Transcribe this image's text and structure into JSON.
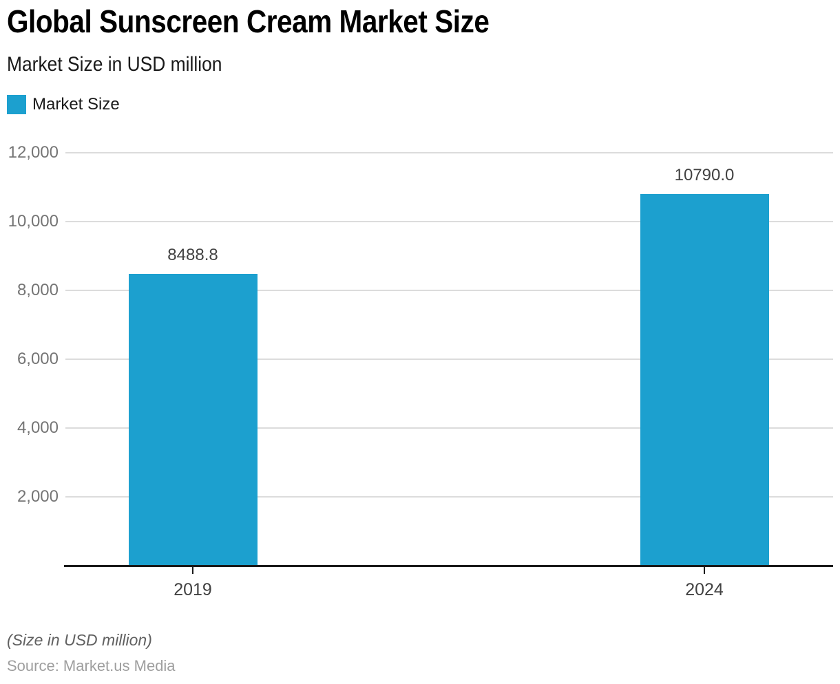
{
  "header": {
    "title": "Global Sunscreen Cream Market Size",
    "subtitle": "Market Size in USD million"
  },
  "legend": {
    "label": "Market Size"
  },
  "chart_data": {
    "type": "bar",
    "title": "Global Sunscreen Cream Market Size",
    "subtitle": "Market Size in USD million",
    "categories": [
      "2019",
      "2024"
    ],
    "series": [
      {
        "name": "Market Size",
        "values": [
          8488.8,
          10790.0
        ]
      }
    ],
    "value_labels": [
      "8488.8",
      "10790.0"
    ],
    "xlabel": "",
    "ylabel": "",
    "ylim": [
      0,
      12000
    ],
    "yticks": [
      {
        "value": 2000,
        "label": "2,000"
      },
      {
        "value": 4000,
        "label": "4,000"
      },
      {
        "value": 6000,
        "label": "6,000"
      },
      {
        "value": 8000,
        "label": "8,000"
      },
      {
        "value": 10000,
        "label": "10,000"
      },
      {
        "value": 12000,
        "label": "12,000"
      }
    ],
    "grid": true,
    "legend_position": "top-left",
    "bar_color": "#1ca0cf",
    "colors": {
      "axis_line": "#1a1a1a",
      "gridline": "#dcdcdc",
      "ytick_label": "#757575",
      "xtick_label": "#424242",
      "value_label": "#424242"
    }
  },
  "footer": {
    "note": "(Size in USD million)",
    "source": "Source: Market.us Media"
  }
}
